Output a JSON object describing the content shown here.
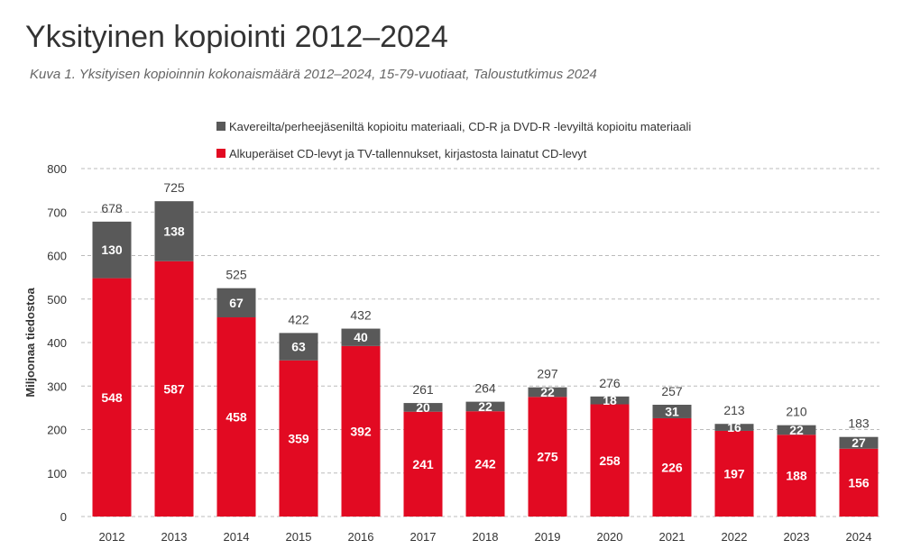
{
  "chart_data": {
    "type": "bar",
    "stacked": true,
    "title": "Yksityinen kopiointi 2012–2024",
    "subtitle": "Kuva 1. Yksityisen kopioinnin kokonaismäärä 2012–2024, 15-79-vuotiaat, Taloustutkimus 2024",
    "xlabel": "",
    "ylabel": "Miljoonaa tiedostoa",
    "ylim": [
      0,
      800
    ],
    "yticks": [
      0,
      100,
      200,
      300,
      400,
      500,
      600,
      700,
      800
    ],
    "grid": true,
    "legend_position": "top",
    "categories": [
      "2012",
      "2013",
      "2014",
      "2015",
      "2016",
      "2017",
      "2018",
      "2019",
      "2020",
      "2021",
      "2022",
      "2023",
      "2024"
    ],
    "series": [
      {
        "name": "Alkuperäiset CD-levyt ja TV-tallennukset, kirjastosta lainatut CD-levyt",
        "color": "#e20a22",
        "values": [
          548,
          587,
          458,
          359,
          392,
          241,
          242,
          275,
          258,
          226,
          197,
          188,
          156
        ]
      },
      {
        "name": "Kavereilta/perheejäseniltä kopioitu materiaali, CD-R ja DVD-R -levyiltä kopioitu materiaali",
        "color": "#595959",
        "values": [
          130,
          138,
          67,
          63,
          40,
          20,
          22,
          22,
          18,
          31,
          16,
          22,
          27
        ]
      }
    ],
    "totals": [
      678,
      725,
      525,
      422,
      432,
      261,
      264,
      297,
      276,
      257,
      213,
      210,
      183
    ]
  }
}
